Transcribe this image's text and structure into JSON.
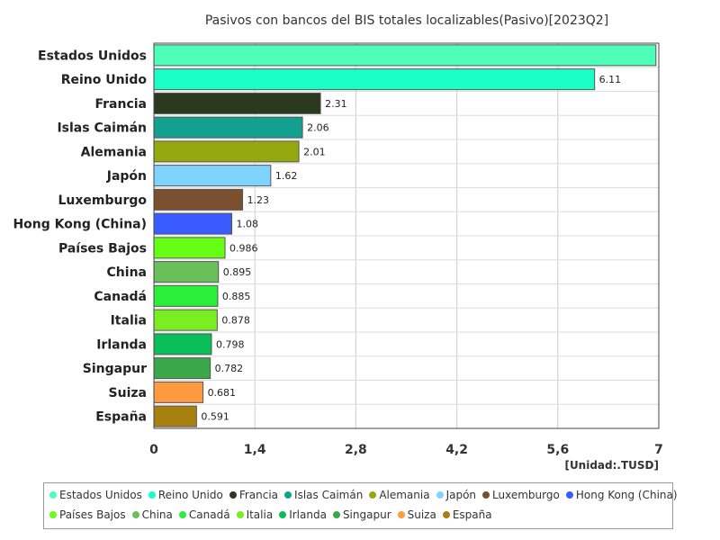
{
  "chart_data": {
    "type": "bar",
    "orientation": "horizontal",
    "title": "Pasivos con bancos del BIS totales localizables(Pasivo)[2023Q2]",
    "unit_label": "[Unidad:.TUSD]",
    "xlim": [
      0,
      7
    ],
    "x_ticks": [
      "0",
      "1,4",
      "2,8",
      "4,2",
      "5,6",
      "7"
    ],
    "x_tick_values": [
      0,
      1.4,
      2.8,
      4.2,
      5.6,
      7
    ],
    "grid": true,
    "legend_position": "bottom",
    "categories": [
      "Estados Unidos",
      "Reino Unido",
      "Francia",
      "Islas Caimán",
      "Alemania",
      "Japón",
      "Luxemburgo",
      "Hong Kong (China)",
      "Países Bajos",
      "China",
      "Canadá",
      "Italia",
      "Irlanda",
      "Singapur",
      "Suiza",
      "España"
    ],
    "values": [
      6.96,
      6.11,
      2.31,
      2.06,
      2.01,
      1.62,
      1.23,
      1.08,
      0.986,
      0.895,
      0.885,
      0.878,
      0.798,
      0.782,
      0.681,
      0.591
    ],
    "value_labels": [
      "",
      "6.11",
      "2.31",
      "2.06",
      "2.01",
      "1.62",
      "1.23",
      "1.08",
      "0.986",
      "0.895",
      "0.885",
      "0.878",
      "0.798",
      "0.782",
      "0.681",
      "0.591"
    ],
    "colors": [
      "#4dffb8",
      "#1affc6",
      "#2b3a1f",
      "#14a090",
      "#95a810",
      "#7fd4ff",
      "#7a5030",
      "#3a5cff",
      "#66ff14",
      "#6abf5a",
      "#2aee3a",
      "#7aee20",
      "#0abf5a",
      "#3aa84a",
      "#ff9a40",
      "#a88010"
    ]
  },
  "legend": {
    "row1": [
      "Estados Unidos",
      "Reino Unido",
      "Francia",
      "Islas Caimán",
      "Alemania",
      "Japón",
      "Luxemburgo",
      "Hong Kong (China)"
    ],
    "row2": [
      "Países Bajos",
      "China",
      "Canadá",
      "Italia",
      "Irlanda",
      "Singapur",
      "Suiza",
      "España"
    ]
  }
}
